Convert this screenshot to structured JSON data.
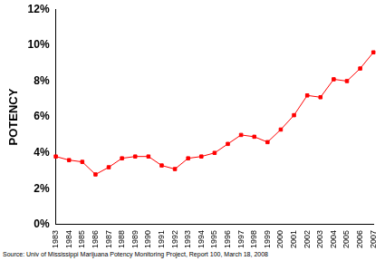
{
  "chart_data": {
    "type": "line",
    "y_label": "POTENCY",
    "source": "Source: Univ of Mississippi Marijuana Potency Monitoring Project, Report 100, March 18, 2008",
    "categories": [
      "1983",
      "1984",
      "1985",
      "1986",
      "1987",
      "1988",
      "1989",
      "1990",
      "1991",
      "1992",
      "1993",
      "1994",
      "1995",
      "1996",
      "1997",
      "1998",
      "1999",
      "2000",
      "2001",
      "2002",
      "2003",
      "2004",
      "2005",
      "2006",
      "2007"
    ],
    "values": [
      3.8,
      3.6,
      3.5,
      2.8,
      3.2,
      3.7,
      3.8,
      3.8,
      3.3,
      3.1,
      3.7,
      3.8,
      4.0,
      4.5,
      5.0,
      4.9,
      4.6,
      5.3,
      6.1,
      7.2,
      7.1,
      8.1,
      8.0,
      8.7,
      9.6
    ],
    "color": "#ff0000",
    "marker": "square",
    "line_style": "solid",
    "ylim": [
      0,
      12
    ],
    "yticks": [
      {
        "value": 0,
        "label": "0%"
      },
      {
        "value": 2,
        "label": "2%"
      },
      {
        "value": 4,
        "label": "4%"
      },
      {
        "value": 6,
        "label": "6%"
      },
      {
        "value": 8,
        "label": "8%"
      },
      {
        "value": 10,
        "label": "10%"
      },
      {
        "value": 12,
        "label": "12%"
      }
    ],
    "grid": false
  }
}
